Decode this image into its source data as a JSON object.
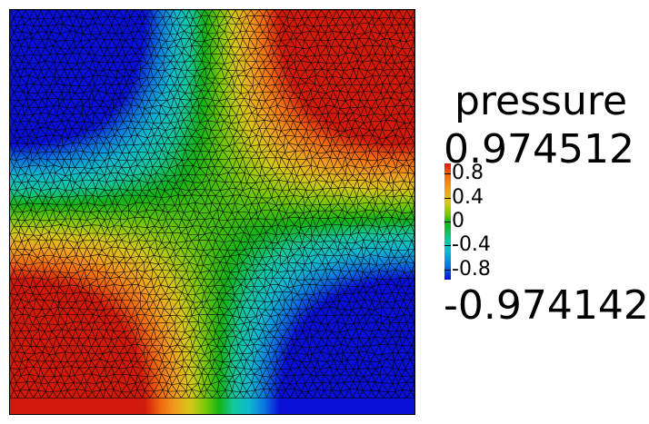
{
  "legend": {
    "title": "pressure",
    "max_label": "0.974512",
    "min_label": "-0.974142",
    "range": [
      -0.974142,
      0.974512
    ],
    "ticks": [
      {
        "label": "0.8",
        "value": 0.8
      },
      {
        "label": "0.4",
        "value": 0.4
      },
      {
        "label": "0",
        "value": 0
      },
      {
        "label": "-0.4",
        "value": -0.4
      },
      {
        "label": "-0.8",
        "value": -0.8
      }
    ],
    "colormap": [
      "#0a10d6",
      "#0a78e0",
      "#10b8d0",
      "#14c8a0",
      "#14b414",
      "#7cc80a",
      "#d6c81a",
      "#f0a020",
      "#f06a10",
      "#d21a0a"
    ]
  },
  "field": {
    "corner_values": {
      "top_left": -0.97,
      "top_right": 0.97,
      "bottom_left": 0.97,
      "bottom_right": -0.97
    },
    "mesh": "triangular",
    "mesh_line_color": "#000000"
  }
}
